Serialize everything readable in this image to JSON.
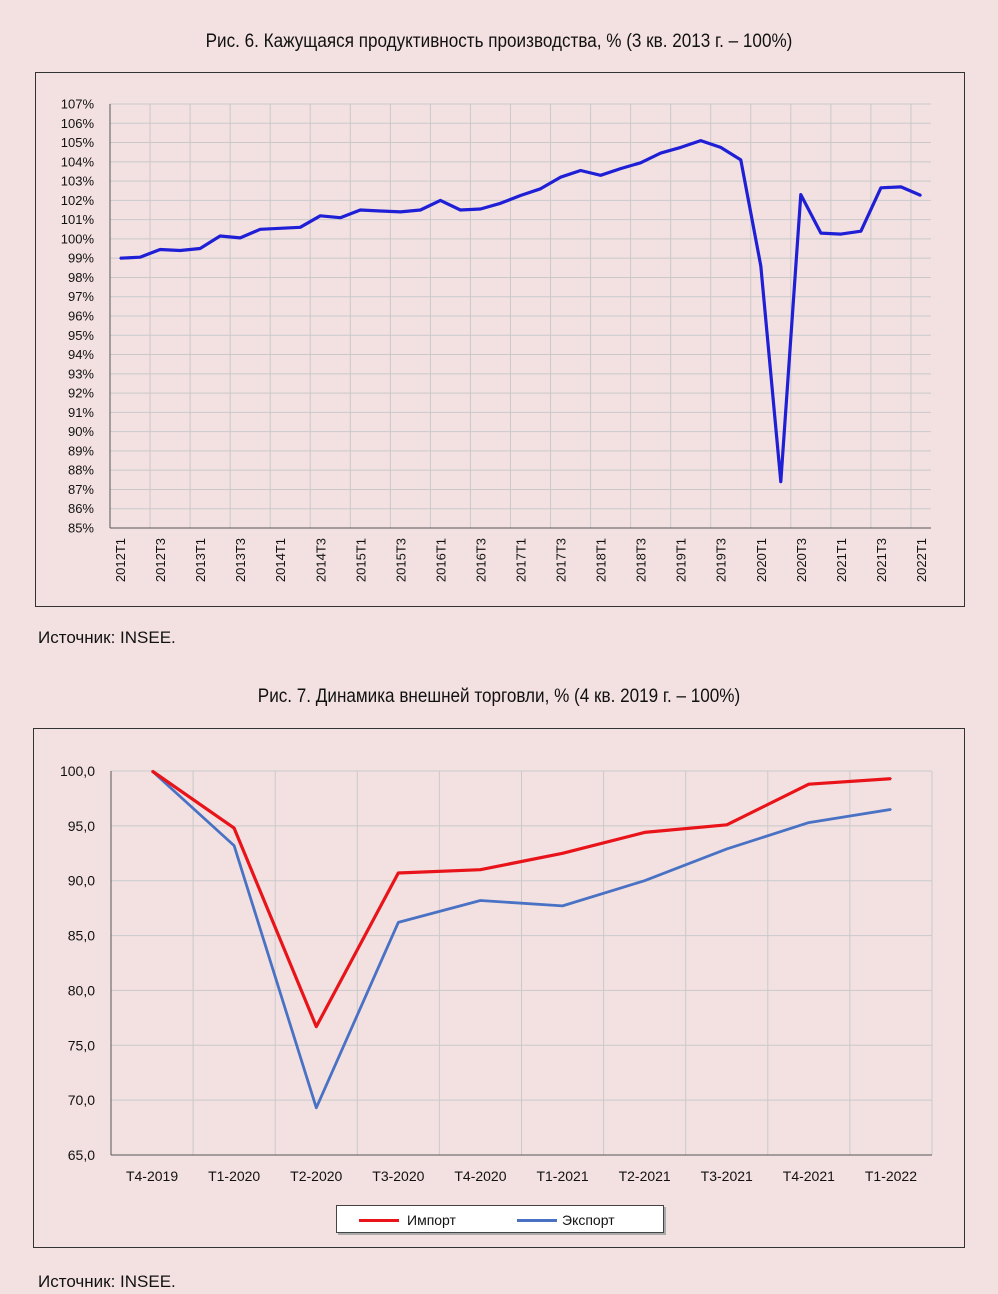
{
  "chart_data": [
    {
      "type": "line",
      "title": "Рис. 6. Кажущаяся продуктивность производства, % (3 кв. 2013 г. – 100%)",
      "source": "Источник: INSEE.",
      "ylim": [
        85,
        107
      ],
      "y_ticks": [
        "107%",
        "106%",
        "105%",
        "104%",
        "103%",
        "102%",
        "101%",
        "100%",
        "99%",
        "98%",
        "97%",
        "96%",
        "95%",
        "94%",
        "93%",
        "92%",
        "91%",
        "90%",
        "89%",
        "88%",
        "87%",
        "86%",
        "85%"
      ],
      "x_tick_labels": [
        "2012T1",
        "2012T3",
        "2013T1",
        "2013T3",
        "2014T1",
        "2014T3",
        "2015T1",
        "2015T3",
        "2016T1",
        "2016T3",
        "2017T1",
        "2017T3",
        "2018T1",
        "2018T3",
        "2019T1",
        "2019T3",
        "2020T1",
        "2020T3",
        "2021T1",
        "2021T3",
        "2022T1"
      ],
      "grid": true,
      "color": "#1f1fd6",
      "series": [
        {
          "values": [
            99.0,
            99.05,
            99.45,
            99.4,
            99.5,
            100.15,
            100.05,
            100.5,
            100.55,
            100.6,
            101.2,
            101.1,
            101.5,
            101.45,
            101.4,
            101.5,
            102.0,
            101.5,
            101.55,
            101.85,
            102.25,
            102.6,
            103.2,
            103.55,
            103.3,
            103.65,
            103.95,
            104.45,
            104.75,
            105.1,
            104.75,
            104.1,
            98.6,
            87.4,
            102.3,
            100.3,
            100.25,
            100.4,
            102.65,
            102.7,
            102.25
          ]
        }
      ]
    },
    {
      "type": "line",
      "title": "Рис. 7. Динамика внешней торговли, % (4 кв. 2019 г. – 100%)",
      "source": "Источник: INSEE.",
      "categories": [
        "T4-2019",
        "T1-2020",
        "T2-2020",
        "T3-2020",
        "T4-2020",
        "T1-2021",
        "T2-2021",
        "T3-2021",
        "T4-2021",
        "T1-2022"
      ],
      "ylim": [
        65,
        100
      ],
      "y_ticks": [
        "100,0",
        "95,0",
        "90,0",
        "85,0",
        "80,0",
        "75,0",
        "70,0",
        "65,0"
      ],
      "grid": true,
      "legend": "bottom",
      "series": [
        {
          "name": "Импорт",
          "color": "#e8141a",
          "values": [
            100.0,
            94.8,
            76.7,
            90.7,
            91.0,
            92.5,
            94.4,
            95.1,
            98.8,
            99.3
          ]
        },
        {
          "name": "Экспорт",
          "color": "#4a72c4",
          "values": [
            100.0,
            93.2,
            69.3,
            86.2,
            88.2,
            87.7,
            90.0,
            92.9,
            95.3,
            96.5
          ]
        }
      ]
    }
  ]
}
